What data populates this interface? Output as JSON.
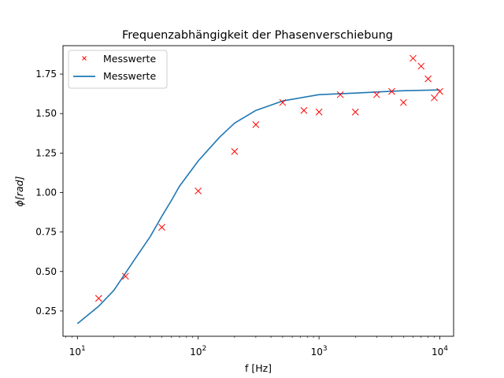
{
  "chart_data": {
    "type": "line",
    "title": "Frequenzabhängigkeit der Phasenverschiebung",
    "xlabel": "f [Hz]",
    "ylabel": "ϕ[rad]",
    "x_scale": "log",
    "xlim": [
      7.6,
      13000
    ],
    "ylim": [
      0.09,
      1.93
    ],
    "grid": false,
    "legend_position": "top-left",
    "x_ticks": [
      {
        "value": 10,
        "base": "10",
        "exp": "1"
      },
      {
        "value": 100,
        "base": "10",
        "exp": "2"
      },
      {
        "value": 1000,
        "base": "10",
        "exp": "3"
      },
      {
        "value": 10000,
        "base": "10",
        "exp": "4"
      }
    ],
    "y_ticks": [
      0.25,
      0.5,
      0.75,
      1.0,
      1.25,
      1.5,
      1.75
    ],
    "y_tick_labels": [
      "0.25",
      "0.50",
      "0.75",
      "1.00",
      "1.25",
      "1.50",
      "1.75"
    ],
    "series": [
      {
        "name": "Messwerte",
        "kind": "scatter",
        "marker": "x",
        "color": "#ff0000",
        "x": [
          15,
          25,
          50,
          100,
          200,
          300,
          500,
          750,
          1000,
          1500,
          2000,
          3000,
          4000,
          5000,
          6000,
          7000,
          8000,
          9000,
          10000
        ],
        "y": [
          0.33,
          0.47,
          0.78,
          1.01,
          1.26,
          1.43,
          1.57,
          1.52,
          1.51,
          1.62,
          1.51,
          1.62,
          1.64,
          1.57,
          1.85,
          1.8,
          1.72,
          1.6,
          1.64
        ]
      },
      {
        "name": "Messwerte",
        "kind": "line",
        "color": "#1f77b4",
        "x": [
          10,
          15,
          20,
          30,
          40,
          50,
          60,
          70,
          80,
          100,
          150,
          200,
          300,
          500,
          1000,
          2000,
          5000,
          10000
        ],
        "y": [
          0.17,
          0.28,
          0.38,
          0.58,
          0.72,
          0.85,
          0.95,
          1.04,
          1.1,
          1.2,
          1.35,
          1.44,
          1.52,
          1.58,
          1.62,
          1.63,
          1.645,
          1.65
        ]
      }
    ]
  }
}
